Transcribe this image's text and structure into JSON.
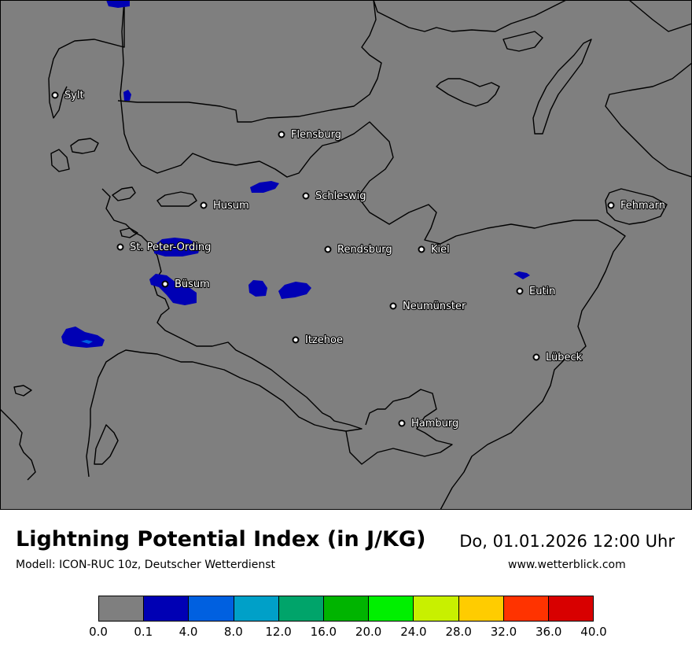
{
  "map": {
    "background_color": "#7f7f7f",
    "coast_color": "#000000",
    "cities": [
      {
        "name": "Sylt"
      },
      {
        "name": "Flensburg"
      },
      {
        "name": "Schleswig"
      },
      {
        "name": "Husum"
      },
      {
        "name": "Fehmarn"
      },
      {
        "name": "St. Peter-Ording"
      },
      {
        "name": "Rendsburg"
      },
      {
        "name": "Kiel"
      },
      {
        "name": "Büsum"
      },
      {
        "name": "Eutin"
      },
      {
        "name": "Neumünster"
      },
      {
        "name": "Itzehoe"
      },
      {
        "name": "Lübeck"
      },
      {
        "name": "Hamburg"
      }
    ]
  },
  "header": {
    "title": "Lightning Potential Index (in J/KG)",
    "model": "Modell: ICON-RUC 10z, Deutscher Wetterdienst",
    "datetime": "Do, 01.01.2026 12:00 Uhr",
    "website": "www.wetterblick.com"
  },
  "legend": {
    "colors": [
      "#7f7f7f",
      "#0000b4",
      "#0060e0",
      "#00a0c8",
      "#00a46a",
      "#00b400",
      "#00f000",
      "#c8f000",
      "#ffcc00",
      "#ff3300",
      "#d80000"
    ],
    "ticks": [
      "0.0",
      "0.1",
      "4.0",
      "8.0",
      "12.0",
      "16.0",
      "20.0",
      "24.0",
      "28.0",
      "32.0",
      "36.0",
      "40.0"
    ]
  }
}
